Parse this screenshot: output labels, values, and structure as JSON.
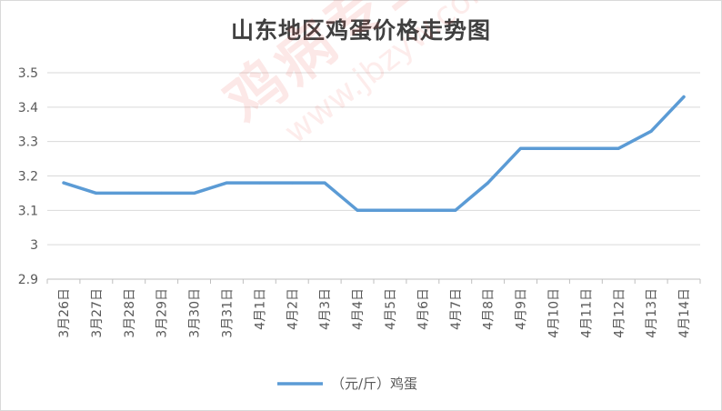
{
  "chart_data": {
    "type": "line",
    "title": "山东地区鸡蛋价格走势图",
    "xlabel": "",
    "ylabel": "",
    "categories": [
      "3月26日",
      "3月27日",
      "3月28日",
      "3月29日",
      "3月30日",
      "3月31日",
      "4月1日",
      "4月2日",
      "4月3日",
      "4月4日",
      "4月5日",
      "4月6日",
      "4月7日",
      "4月8日",
      "4月9日",
      "4月10日",
      "4月11日",
      "4月12日",
      "4月13日",
      "4月14日"
    ],
    "series": [
      {
        "name": "（元/斤）鸡蛋",
        "color": "#5b9bd5",
        "values": [
          3.18,
          3.15,
          3.15,
          3.15,
          3.15,
          3.18,
          3.18,
          3.18,
          3.18,
          3.1,
          3.1,
          3.1,
          3.1,
          3.18,
          3.28,
          3.28,
          3.28,
          3.28,
          3.33,
          3.43
        ]
      }
    ],
    "ylim": [
      2.9,
      3.5
    ],
    "yticks": [
      "2.9",
      "3",
      "3.1",
      "3.2",
      "3.3",
      "3.4",
      "3.5"
    ],
    "grid": true,
    "legend_position": "bottom"
  },
  "watermark": {
    "main": "鸡病专业网",
    "url": "www.jbzyw.com"
  }
}
